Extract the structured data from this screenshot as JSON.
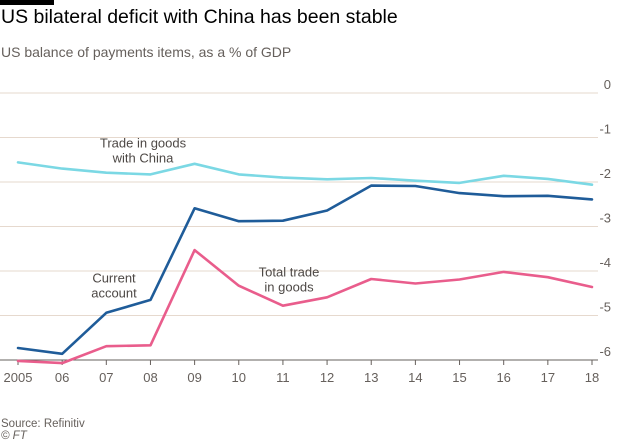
{
  "title": "US bilateral deficit with China has been stable",
  "subtitle": "US balance of payments items, as a % of GDP",
  "source": "Source: Refinitiv",
  "credit": "© FT",
  "chart_data": {
    "type": "line",
    "x": [
      2005,
      2006,
      2007,
      2008,
      2009,
      2010,
      2011,
      2012,
      2013,
      2014,
      2015,
      2016,
      2017,
      2018
    ],
    "x_tick_labels": [
      "2005",
      "06",
      "07",
      "08",
      "09",
      "10",
      "11",
      "12",
      "13",
      "14",
      "15",
      "16",
      "17",
      "18"
    ],
    "y_ticks": [
      0,
      -1,
      -2,
      -3,
      -4,
      -5,
      -6
    ],
    "y_tick_labels": [
      "0",
      "-1",
      "-2",
      "-3",
      "-4",
      "-5",
      "-6"
    ],
    "ylim": [
      -6,
      0
    ],
    "grid": true,
    "y_axis_side": "right",
    "series": [
      {
        "name": "Trade in goods with China",
        "label_lines": [
          "Trade in goods",
          "with China"
        ],
        "color": "#7bd8e4",
        "values": [
          -1.56,
          -1.7,
          -1.79,
          -1.83,
          -1.59,
          -1.83,
          -1.9,
          -1.94,
          -1.91,
          -1.97,
          -2.02,
          -1.86,
          -1.93,
          -2.06
        ]
      },
      {
        "name": "Current account",
        "label_lines": [
          "Current",
          "account"
        ],
        "color": "#1f5c99",
        "values": [
          -5.73,
          -5.86,
          -4.94,
          -4.65,
          -2.59,
          -2.88,
          -2.87,
          -2.64,
          -2.08,
          -2.09,
          -2.25,
          -2.32,
          -2.31,
          -2.39
        ]
      },
      {
        "name": "Total trade in goods",
        "label_lines": [
          "Total trade",
          "in goods"
        ],
        "color": "#e95d8c",
        "values": [
          -6.02,
          -6.07,
          -5.69,
          -5.67,
          -3.53,
          -4.33,
          -4.78,
          -4.59,
          -4.18,
          -4.28,
          -4.19,
          -4.02,
          -4.14,
          -4.36
        ]
      }
    ]
  }
}
